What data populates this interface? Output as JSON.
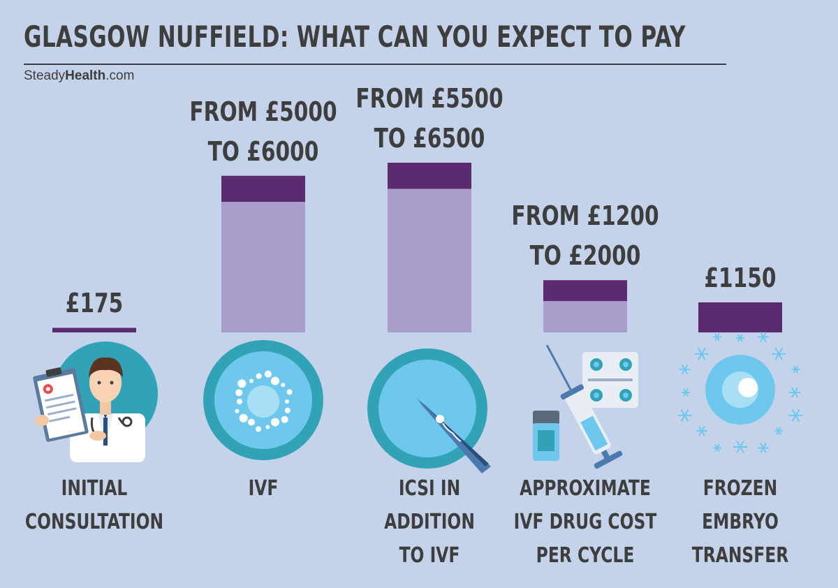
{
  "header": {
    "title": "GLASGOW NUFFIELD: WHAT CAN YOU EXPECT TO PAY",
    "brand_light": "Steady",
    "brand_bold": "Health",
    "brand_suffix": ".com"
  },
  "colors": {
    "background": "#c5d3ea",
    "bar_dark": "#5c2a70",
    "bar_light": "#a99ecb",
    "text": "#3e3e3e",
    "icon_teal": "#32a3b7",
    "icon_light": "#6ec8ee"
  },
  "chart_data": {
    "type": "bar",
    "title": "GLASGOW NUFFIELD: WHAT CAN YOU EXPECT TO PAY",
    "unit": "£",
    "categories": [
      "INITIAL CONSULTATION",
      "IVF",
      "ICSI IN ADDITION TO IVF",
      "APPROXIMATE IVF DRUG COST PER CYCLE",
      "FROZEN EMBRYO TRANSFER"
    ],
    "ranges": [
      {
        "min": 175,
        "max": 175
      },
      {
        "min": 5000,
        "max": 6000
      },
      {
        "min": 5500,
        "max": 6500
      },
      {
        "min": 1200,
        "max": 2000
      },
      {
        "min": 1150,
        "max": 1150
      }
    ],
    "price_labels": [
      "£175",
      "FROM £5000\nTO £6000",
      "FROM £5500\nTO £6500",
      "FROM £1200\nTO £2000",
      "£1150"
    ],
    "column_labels": [
      "INITIAL\nCONSULTATION",
      "IVF",
      "ICSI IN\nADDITION\nTO IVF",
      "APPROXIMATE\nIVF DRUG COST\nPER CYCLE",
      "FROZEN\nEMBRYO\nTRANSFER"
    ],
    "icons": [
      "doctor-icon",
      "ivf-cell-icon",
      "icsi-needle-icon",
      "drug-syringe-icon",
      "frozen-embryo-icon"
    ]
  }
}
